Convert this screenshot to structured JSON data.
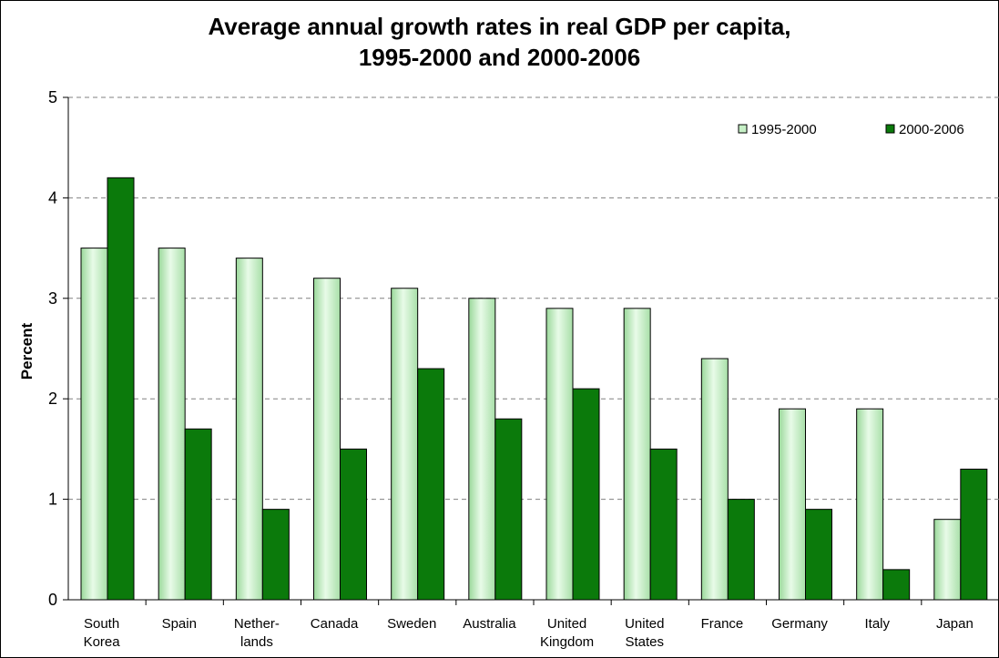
{
  "chart_data": {
    "type": "bar",
    "title_lines": [
      "Average annual growth rates in real GDP per capita,",
      "1995-2000 and 2000-2006"
    ],
    "ylabel": "Percent",
    "xlabel": "",
    "ylim": [
      0,
      5
    ],
    "yticks": [
      0,
      1,
      2,
      3,
      4,
      5
    ],
    "grid": "dashed horizontal",
    "legend_position": "top-right",
    "categories": [
      [
        "South",
        "Korea"
      ],
      [
        "Spain"
      ],
      [
        "Nether-",
        "lands"
      ],
      [
        "Canada"
      ],
      [
        "Sweden"
      ],
      [
        "Australia"
      ],
      [
        "United",
        "Kingdom"
      ],
      [
        "United",
        "States"
      ],
      [
        "France"
      ],
      [
        "Germany"
      ],
      [
        "Italy"
      ],
      [
        "Japan"
      ]
    ],
    "series": [
      {
        "name": "1995-2000",
        "color": "#c6f0c6",
        "values": [
          3.5,
          3.5,
          3.4,
          3.2,
          3.1,
          3.0,
          2.9,
          2.9,
          2.4,
          1.9,
          1.9,
          0.8
        ]
      },
      {
        "name": "2000-2006",
        "color": "#0b7a0b",
        "values": [
          4.2,
          1.7,
          0.9,
          1.5,
          2.3,
          1.8,
          2.1,
          1.5,
          1.0,
          0.9,
          0.3,
          1.3
        ]
      }
    ]
  }
}
